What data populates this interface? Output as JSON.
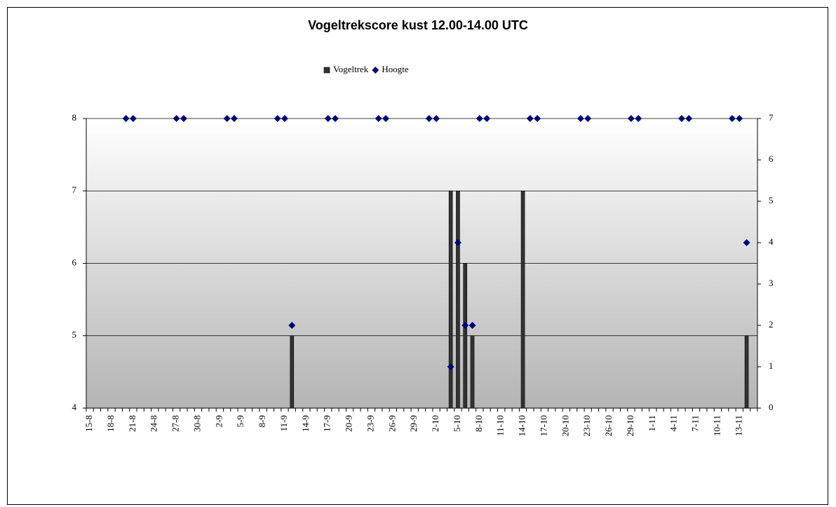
{
  "chart_data": {
    "type": "bar-scatter",
    "title": "Vogeltrekscore kust 12.00-14.00 UTC",
    "categories": [
      "15-8",
      null,
      null,
      "18-8",
      null,
      null,
      "21-8",
      null,
      null,
      "24-8",
      null,
      null,
      "27-8",
      null,
      null,
      "30-8",
      null,
      null,
      "2-9",
      null,
      null,
      "5-9",
      null,
      null,
      "8-9",
      null,
      null,
      "11-9",
      null,
      null,
      "14-9",
      null,
      null,
      "17-9",
      null,
      null,
      "20-9",
      null,
      null,
      "23-9",
      null,
      null,
      "26-9",
      null,
      null,
      "29-9",
      null,
      null,
      "2-10",
      null,
      null,
      "5-10",
      null,
      null,
      "8-10",
      null,
      null,
      "11-10",
      null,
      null,
      "14-10",
      null,
      null,
      "17-10",
      null,
      null,
      "20-10",
      null,
      null,
      "23-10",
      null,
      null,
      "26-10",
      null,
      null,
      "29-10",
      null,
      null,
      "1-11",
      null,
      null,
      "4-11",
      null,
      null,
      "7-11",
      null,
      null,
      "10-11",
      null,
      null,
      "13-11",
      null,
      null
    ],
    "series": [
      {
        "name": "Vogeltrek",
        "color": "#333333",
        "kind": "bar",
        "values": [
          null,
          null,
          null,
          null,
          null,
          null,
          null,
          null,
          null,
          null,
          null,
          null,
          null,
          null,
          null,
          null,
          null,
          null,
          null,
          null,
          null,
          null,
          null,
          null,
          null,
          null,
          null,
          null,
          5,
          null,
          null,
          null,
          null,
          null,
          null,
          null,
          null,
          null,
          null,
          null,
          null,
          null,
          null,
          null,
          null,
          null,
          null,
          null,
          null,
          null,
          7,
          7,
          6,
          5,
          null,
          null,
          null,
          null,
          null,
          null,
          7,
          null,
          null,
          null,
          null,
          null,
          null,
          null,
          null,
          null,
          null,
          null,
          null,
          null,
          null,
          null,
          null,
          null,
          null,
          null,
          null,
          null,
          null,
          null,
          null,
          null,
          null,
          null,
          null,
          null,
          null,
          5,
          null
        ]
      },
      {
        "name": "Hoogte",
        "color": "#000080",
        "kind": "scatter",
        "axis": "y2",
        "values": [
          null,
          null,
          null,
          null,
          null,
          7,
          7,
          null,
          null,
          null,
          null,
          null,
          7,
          7,
          null,
          null,
          null,
          null,
          null,
          7,
          7,
          null,
          null,
          null,
          null,
          null,
          7,
          7,
          2,
          null,
          null,
          null,
          null,
          7,
          7,
          null,
          null,
          null,
          null,
          null,
          7,
          7,
          null,
          null,
          null,
          null,
          null,
          7,
          7,
          null,
          1,
          4,
          2,
          2,
          7,
          7,
          null,
          null,
          null,
          null,
          null,
          7,
          7,
          null,
          null,
          null,
          null,
          null,
          7,
          7,
          null,
          null,
          null,
          null,
          null,
          7,
          7,
          null,
          null,
          null,
          null,
          null,
          7,
          7,
          null,
          null,
          null,
          null,
          null,
          7,
          7,
          4,
          null
        ]
      }
    ],
    "ylim": [
      4,
      8
    ],
    "yticks": [
      4,
      5,
      6,
      7,
      8
    ],
    "y2lim": [
      0,
      7
    ],
    "y2ticks": [
      0,
      1,
      2,
      3,
      4,
      5,
      6,
      7
    ],
    "grid": true,
    "legend": "top"
  }
}
